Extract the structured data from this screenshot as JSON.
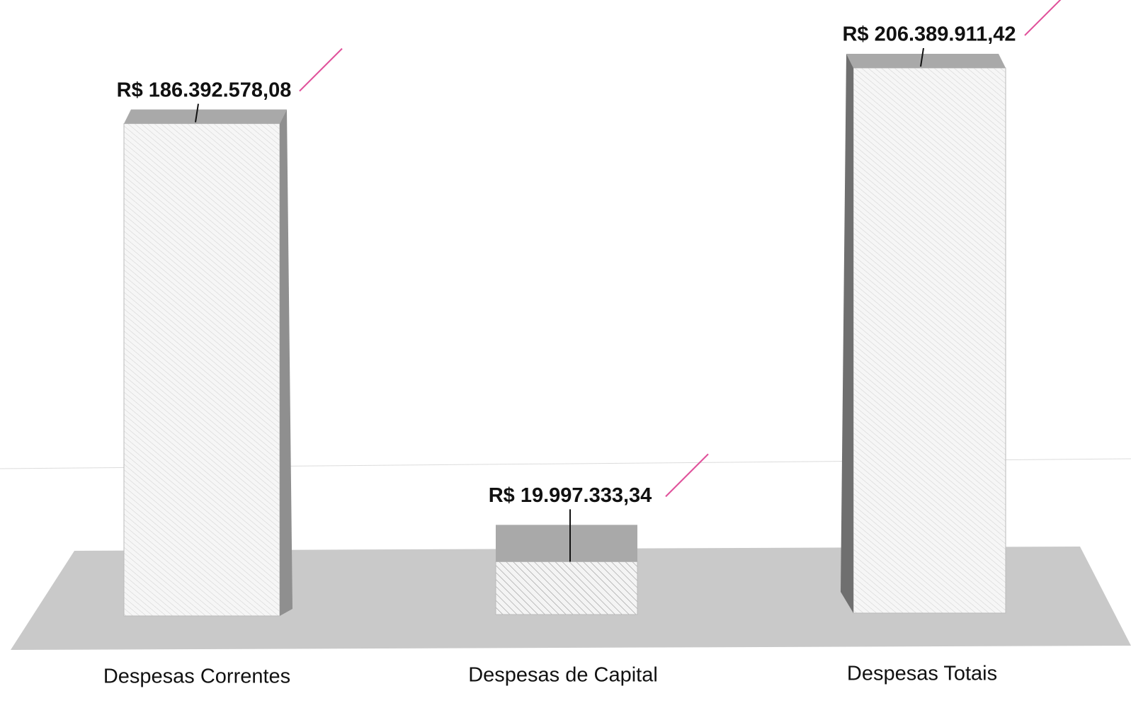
{
  "chart_data": {
    "type": "bar3d",
    "categories": [
      "Despesas Correntes",
      "Despesas de Capital",
      "Despesas Totais"
    ],
    "values": [
      186392578.08,
      19997333.34,
      206389911.42
    ],
    "value_labels": [
      "R$ 186.392.578,08",
      "R$ 19.997.333,34",
      "R$ 206.389.911,42"
    ],
    "color": "#f2f2f2"
  }
}
